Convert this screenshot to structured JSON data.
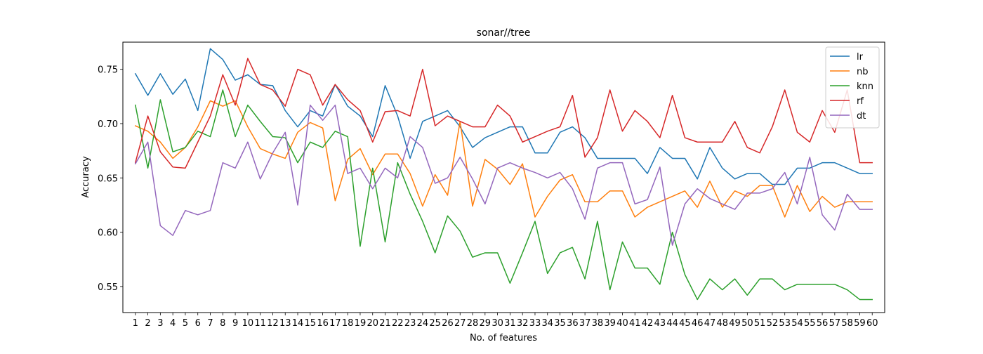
{
  "chart_data": {
    "type": "line",
    "title": "sonar//tree",
    "xlabel": "No. of features",
    "ylabel": "Accuracy",
    "x": [
      1,
      2,
      3,
      4,
      5,
      6,
      7,
      8,
      9,
      10,
      11,
      12,
      13,
      14,
      15,
      16,
      17,
      18,
      19,
      20,
      21,
      22,
      23,
      24,
      25,
      26,
      27,
      28,
      29,
      30,
      31,
      32,
      33,
      34,
      35,
      36,
      37,
      38,
      39,
      40,
      41,
      42,
      43,
      44,
      45,
      46,
      47,
      48,
      49,
      50,
      51,
      52,
      53,
      54,
      55,
      56,
      57,
      58,
      59,
      60
    ],
    "xlim": [
      0,
      61
    ],
    "ylim": [
      0.526,
      0.775
    ],
    "yticks": [
      0.55,
      0.6,
      0.65,
      0.7,
      0.75
    ],
    "ytick_labels": [
      "0.55",
      "0.60",
      "0.65",
      "0.70",
      "0.75"
    ],
    "grid": false,
    "legend_position": "top-right",
    "series": [
      {
        "name": "lr",
        "color": "#1f77b4",
        "values": [
          0.746,
          0.726,
          0.746,
          0.727,
          0.741,
          0.712,
          0.769,
          0.759,
          0.74,
          0.745,
          0.736,
          0.735,
          0.712,
          0.697,
          0.712,
          0.707,
          0.736,
          0.716,
          0.707,
          0.688,
          0.735,
          0.707,
          0.668,
          0.702,
          0.707,
          0.712,
          0.697,
          0.678,
          0.687,
          0.692,
          0.697,
          0.697,
          0.673,
          0.673,
          0.692,
          0.697,
          0.687,
          0.668,
          0.668,
          0.668,
          0.668,
          0.654,
          0.678,
          0.668,
          0.668,
          0.649,
          0.678,
          0.659,
          0.649,
          0.654,
          0.654,
          0.644,
          0.644,
          0.659,
          0.659,
          0.664,
          0.664,
          0.659,
          0.654,
          0.654
        ]
      },
      {
        "name": "nb",
        "color": "#ff7f0e",
        "values": [
          0.698,
          0.693,
          0.683,
          0.668,
          0.678,
          0.697,
          0.721,
          0.716,
          0.721,
          0.697,
          0.677,
          0.672,
          0.668,
          0.692,
          0.701,
          0.696,
          0.629,
          0.667,
          0.677,
          0.653,
          0.672,
          0.672,
          0.654,
          0.624,
          0.653,
          0.634,
          0.702,
          0.624,
          0.667,
          0.658,
          0.644,
          0.663,
          0.614,
          0.633,
          0.648,
          0.653,
          0.628,
          0.628,
          0.638,
          0.638,
          0.614,
          0.623,
          0.628,
          0.633,
          0.638,
          0.623,
          0.647,
          0.623,
          0.638,
          0.633,
          0.643,
          0.643,
          0.614,
          0.643,
          0.619,
          0.633,
          0.623,
          0.628,
          0.628,
          0.628
        ]
      },
      {
        "name": "knn",
        "color": "#2ca02c",
        "values": [
          0.717,
          0.659,
          0.722,
          0.674,
          0.678,
          0.693,
          0.688,
          0.731,
          0.688,
          0.717,
          0.702,
          0.688,
          0.687,
          0.664,
          0.683,
          0.678,
          0.693,
          0.688,
          0.587,
          0.659,
          0.591,
          0.664,
          0.635,
          0.61,
          0.581,
          0.615,
          0.601,
          0.577,
          0.581,
          0.581,
          0.553,
          0.581,
          0.61,
          0.562,
          0.581,
          0.586,
          0.557,
          0.61,
          0.547,
          0.591,
          0.567,
          0.567,
          0.552,
          0.6,
          0.561,
          0.538,
          0.557,
          0.547,
          0.557,
          0.542,
          0.557,
          0.557,
          0.547,
          0.552,
          0.552,
          0.552,
          0.552,
          0.547,
          0.538,
          0.538
        ]
      },
      {
        "name": "rf",
        "color": "#d62728",
        "values": [
          0.664,
          0.707,
          0.674,
          0.66,
          0.659,
          0.683,
          0.707,
          0.745,
          0.717,
          0.76,
          0.736,
          0.731,
          0.716,
          0.75,
          0.745,
          0.717,
          0.736,
          0.722,
          0.712,
          0.683,
          0.711,
          0.712,
          0.707,
          0.75,
          0.698,
          0.707,
          0.702,
          0.697,
          0.697,
          0.717,
          0.707,
          0.683,
          0.688,
          0.693,
          0.697,
          0.726,
          0.669,
          0.687,
          0.731,
          0.693,
          0.712,
          0.702,
          0.687,
          0.726,
          0.687,
          0.683,
          0.683,
          0.683,
          0.702,
          0.678,
          0.673,
          0.697,
          0.731,
          0.692,
          0.683,
          0.712,
          0.692,
          0.731,
          0.664,
          0.664
        ]
      },
      {
        "name": "dt",
        "color": "#9467bd",
        "values": [
          0.663,
          0.683,
          0.606,
          0.597,
          0.62,
          0.616,
          0.62,
          0.664,
          0.659,
          0.683,
          0.649,
          0.673,
          0.692,
          0.625,
          0.717,
          0.703,
          0.717,
          0.654,
          0.659,
          0.64,
          0.659,
          0.65,
          0.688,
          0.678,
          0.645,
          0.65,
          0.669,
          0.649,
          0.626,
          0.659,
          0.664,
          0.659,
          0.655,
          0.65,
          0.655,
          0.64,
          0.612,
          0.659,
          0.664,
          0.664,
          0.626,
          0.63,
          0.66,
          0.588,
          0.626,
          0.64,
          0.631,
          0.626,
          0.621,
          0.636,
          0.636,
          0.64,
          0.655,
          0.626,
          0.669,
          0.616,
          0.602,
          0.635,
          0.621,
          0.621
        ]
      }
    ]
  }
}
